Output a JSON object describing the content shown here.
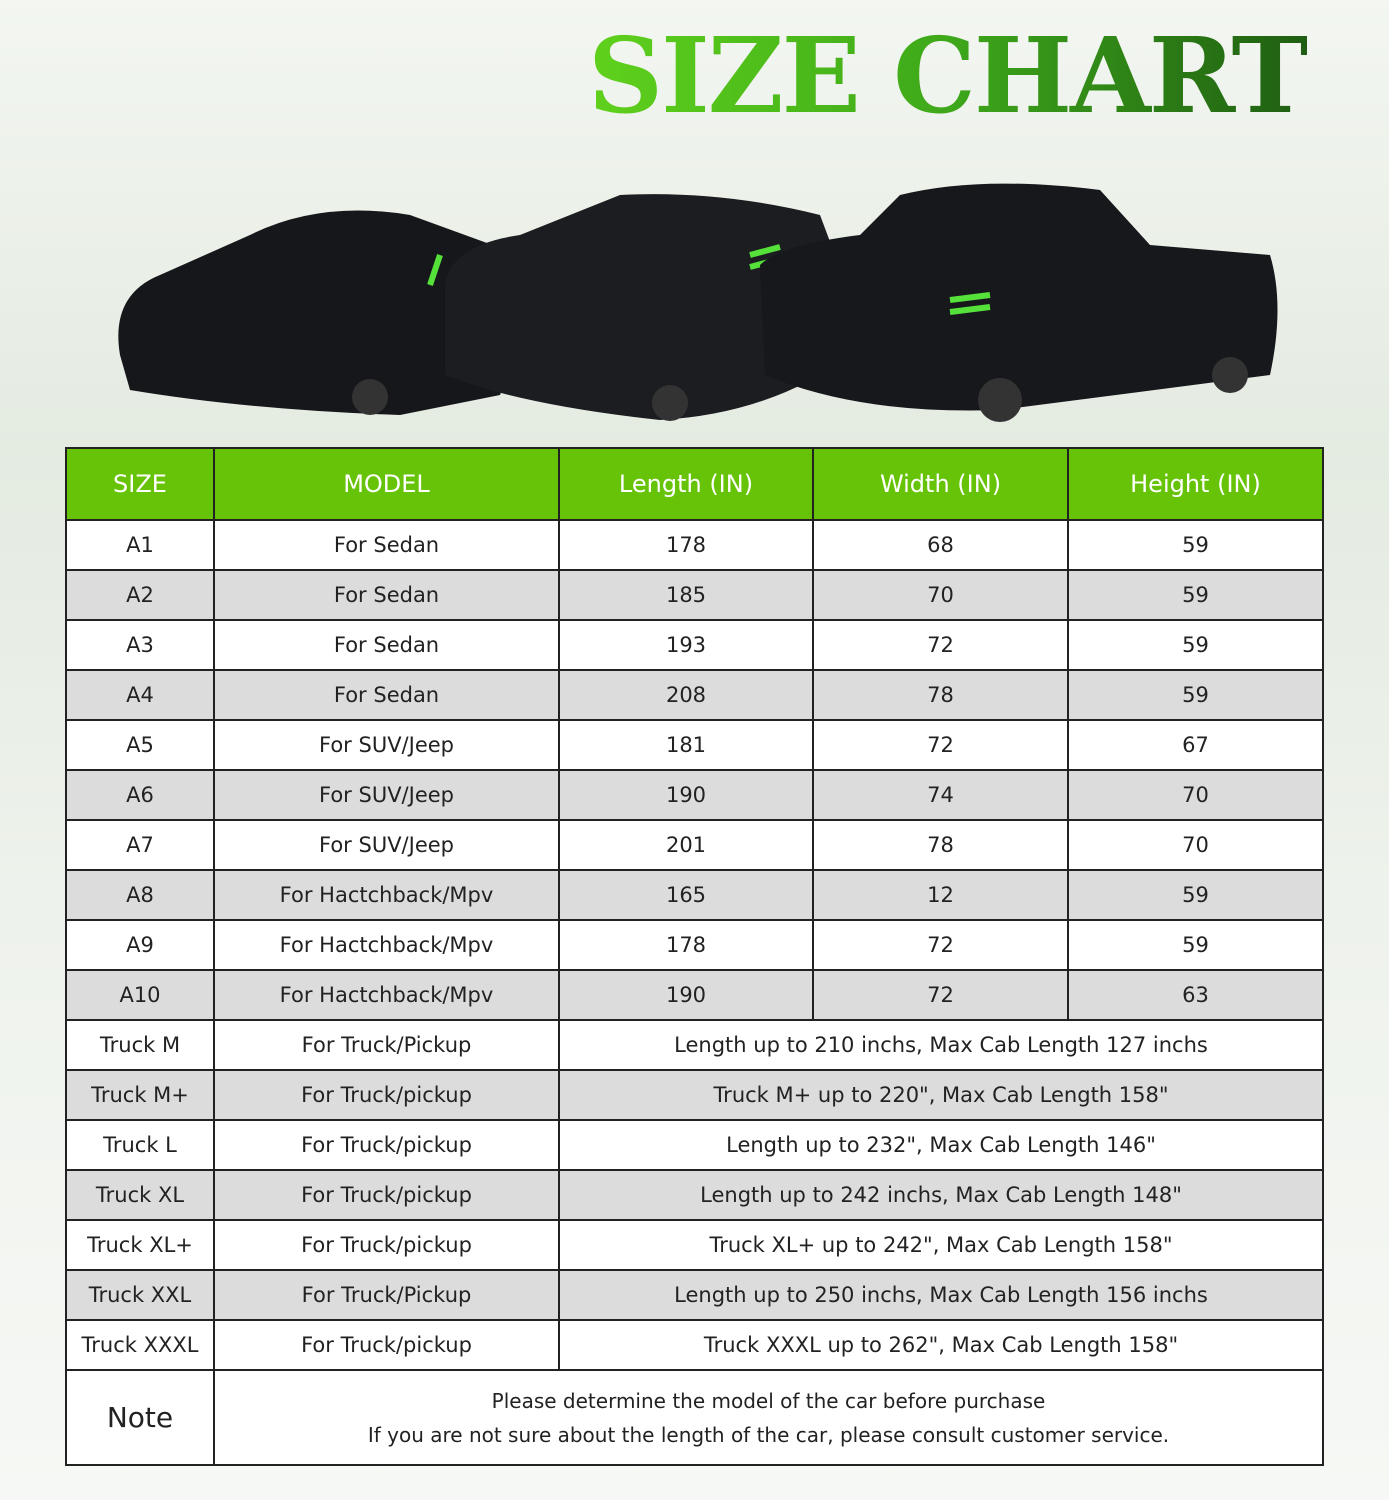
{
  "title": "SIZE CHART",
  "colors": {
    "header": "#67c308",
    "alt_row": "#dcdcdc",
    "title_start": "#5fd11c",
    "title_end": "#1f5e12"
  },
  "table": {
    "headers": [
      "SIZE",
      "MODEL",
      "Length (IN)",
      "Width (IN)",
      "Height (IN)"
    ],
    "rows": [
      {
        "size": "A1",
        "model": "For Sedan",
        "length": "178",
        "width": "68",
        "height": "59"
      },
      {
        "size": "A2",
        "model": "For Sedan",
        "length": "185",
        "width": "70",
        "height": "59"
      },
      {
        "size": "A3",
        "model": "For Sedan",
        "length": "193",
        "width": "72",
        "height": "59"
      },
      {
        "size": "A4",
        "model": "For Sedan",
        "length": "208",
        "width": "78",
        "height": "59"
      },
      {
        "size": "A5",
        "model": "For SUV/Jeep",
        "length": "181",
        "width": "72",
        "height": "67"
      },
      {
        "size": "A6",
        "model": "For SUV/Jeep",
        "length": "190",
        "width": "74",
        "height": "70"
      },
      {
        "size": "A7",
        "model": "For SUV/Jeep",
        "length": "201",
        "width": "78",
        "height": "70"
      },
      {
        "size": "A8",
        "model": "For Hactchback/Mpv",
        "length": "165",
        "width": "12",
        "height": "59"
      },
      {
        "size": "A9",
        "model": "For Hactchback/Mpv",
        "length": "178",
        "width": "72",
        "height": "59"
      },
      {
        "size": "A10",
        "model": "For Hactchback/Mpv",
        "length": "190",
        "width": "72",
        "height": "63"
      }
    ],
    "truck_rows": [
      {
        "size": "Truck M",
        "model": "For Truck/Pickup",
        "spec": "Length up to 210 inchs, Max Cab Length 127 inchs"
      },
      {
        "size": "Truck M+",
        "model": "For Truck/pickup",
        "spec": "Truck M+ up to 220\", Max Cab Length 158\""
      },
      {
        "size": "Truck L",
        "model": "For Truck/pickup",
        "spec": "Length  up to 232\", Max Cab Length 146\""
      },
      {
        "size": "Truck XL",
        "model": "For Truck/pickup",
        "spec": "Length up to 242 inchs, Max Cab Length 148\""
      },
      {
        "size": "Truck XL+",
        "model": "For Truck/pickup",
        "spec": "Truck XL+ up to 242\", Max Cab Length 158\""
      },
      {
        "size": "Truck XXL",
        "model": "For Truck/Pickup",
        "spec": "Length up to 250 inchs, Max Cab Length 156 inchs"
      },
      {
        "size": "Truck XXXL",
        "model": "For Truck/pickup",
        "spec": "Truck XXXL up to 262\", Max Cab Length 158\""
      }
    ],
    "note_label": "Note",
    "note_lines": [
      "Please determine the model of the car before purchase",
      "If you are not sure about the length of the car, please consult customer service."
    ]
  }
}
